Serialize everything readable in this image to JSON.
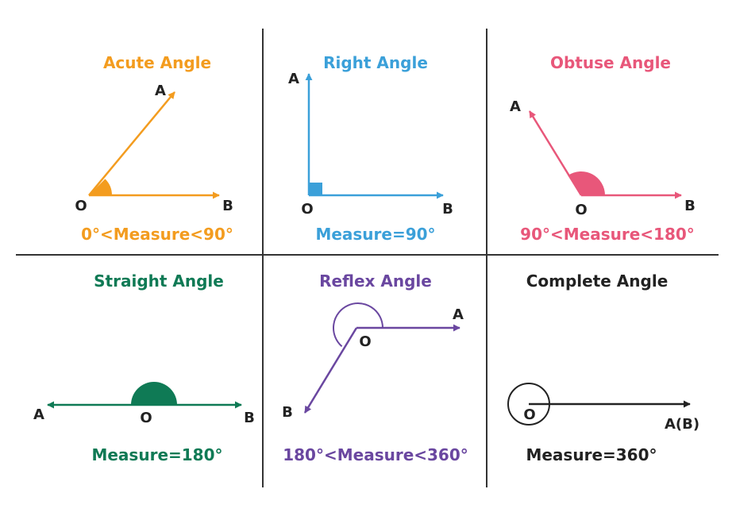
{
  "colors": {
    "acute": "#f39c1f",
    "right": "#3ba0d9",
    "obtuse": "#e8577a",
    "straight": "#0f7a55",
    "reflex": "#6a47a0",
    "complete": "#222222",
    "divider": "#333333"
  },
  "acute": {
    "title": "Acute Angle",
    "measure": "0°<Measure<90°",
    "point_o": "O",
    "point_a": "A",
    "point_b": "B"
  },
  "right": {
    "title": "Right Angle",
    "measure": "Measure=90°",
    "point_o": "O",
    "point_a": "A",
    "point_b": "B"
  },
  "obtuse": {
    "title": "Obtuse Angle",
    "measure": "90°<Measure<180°",
    "point_o": "O",
    "point_a": "A",
    "point_b": "B"
  },
  "straight": {
    "title": "Straight Angle",
    "measure": "Measure=180°",
    "point_o": "O",
    "point_a": "A",
    "point_b": "B"
  },
  "reflex": {
    "title": "Reflex Angle",
    "measure": "180°<Measure<360°",
    "point_o": "O",
    "point_a": "A",
    "point_b": "B"
  },
  "complete": {
    "title": "Complete Angle",
    "measure": "Measure=360°",
    "point_o": "O",
    "point_ab": "A(B)"
  }
}
